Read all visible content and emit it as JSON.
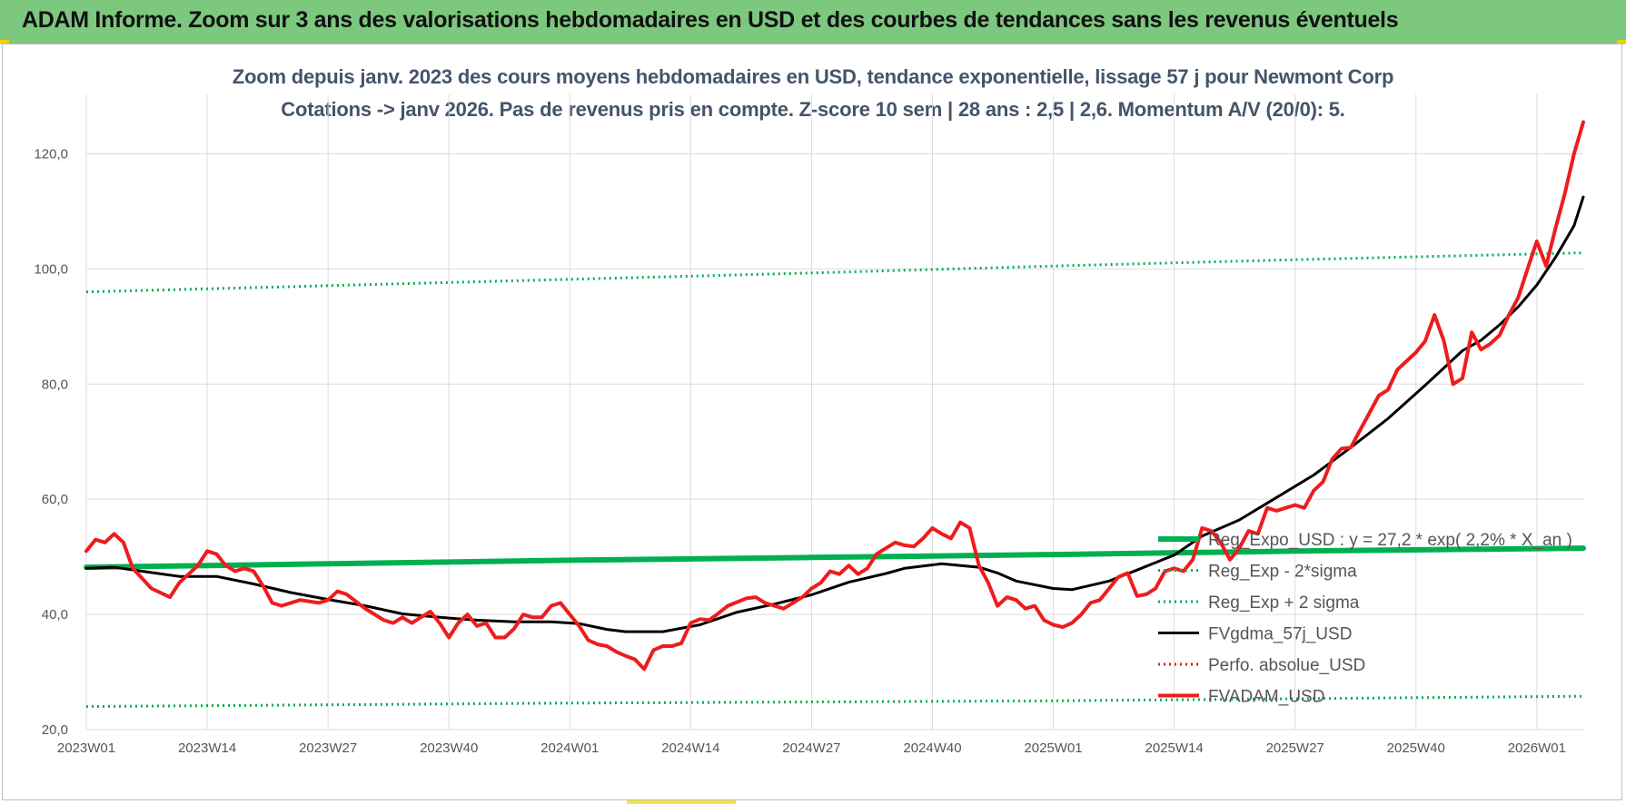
{
  "banner": {
    "text": "ADAM Informe. Zoom sur 3 ans des valorisations hebdomadaires en USD et des courbes de tendances sans les revenus éventuels"
  },
  "chart_data": {
    "type": "line",
    "title": "Zoom depuis janv. 2023 des cours moyens hebdomadaires en USD, tendance exponentielle, lissage 57 j pour Newmont Corp",
    "subtitle": "Cotations -> janv 2026. Pas de revenus pris en compte. Z-score 10 sem | 28 ans : 2,5 | 2,6. Momentum A/V (20/0): 5.",
    "xlabel": "",
    "ylabel": "",
    "ylim": [
      20,
      130
    ],
    "yticks": [
      "20,0",
      "40,0",
      "60,0",
      "80,0",
      "100,0",
      "120,0"
    ],
    "ytick_values": [
      20,
      40,
      60,
      80,
      100,
      120
    ],
    "x_tick_labels": [
      "2023W01",
      "2023W14",
      "2023W27",
      "2023W40",
      "2024W01",
      "2024W14",
      "2024W27",
      "2024W40",
      "2025W01",
      "2025W14",
      "2025W27",
      "2025W40",
      "2026W01"
    ],
    "x_tick_weeks": [
      0,
      13,
      26,
      39,
      52,
      65,
      78,
      91,
      104,
      117,
      130,
      143,
      156
    ],
    "x_range_weeks": [
      0,
      161
    ],
    "grid": true,
    "legend_position": "bottom-right",
    "colors": {
      "green": "#00b050",
      "black": "#000000",
      "red": "#ee1c1c",
      "red_dotted": "#d42020",
      "grid": "#dcdcdc"
    },
    "series": [
      {
        "name": "Reg_Expo_USD : y = 27,2 * exp( 2,2% * X_an )",
        "style": "solid-thick",
        "color": "#00b050",
        "points": [
          [
            0,
            48.2
          ],
          [
            26,
            48.8
          ],
          [
            52,
            49.4
          ],
          [
            78,
            49.9
          ],
          [
            104,
            50.4
          ],
          [
            130,
            51.0
          ],
          [
            161,
            51.5
          ]
        ]
      },
      {
        "name": "Reg_Exp - 2*sigma",
        "style": "dotted",
        "color": "#00b050",
        "points": [
          [
            0,
            24.0
          ],
          [
            52,
            24.6
          ],
          [
            104,
            25.0
          ],
          [
            161,
            25.8
          ]
        ]
      },
      {
        "name": "Reg_Exp + 2 sigma",
        "style": "dotted",
        "color": "#00b050",
        "points": [
          [
            0,
            96.0
          ],
          [
            26,
            97.1
          ],
          [
            52,
            98.2
          ],
          [
            78,
            99.3
          ],
          [
            104,
            100.5
          ],
          [
            130,
            101.6
          ],
          [
            161,
            102.8
          ]
        ]
      },
      {
        "name": "FVgdma_57j_USD",
        "style": "solid",
        "color": "#000000",
        "points": [
          [
            0,
            48.0
          ],
          [
            3,
            48.2
          ],
          [
            6,
            47.5
          ],
          [
            10,
            46.6
          ],
          [
            14,
            46.6
          ],
          [
            18,
            45.3
          ],
          [
            22,
            43.8
          ],
          [
            26,
            42.6
          ],
          [
            30,
            41.5
          ],
          [
            34,
            40.1
          ],
          [
            38,
            39.5
          ],
          [
            42,
            39.0
          ],
          [
            46,
            38.7
          ],
          [
            50,
            38.7
          ],
          [
            53,
            38.4
          ],
          [
            56,
            37.4
          ],
          [
            58,
            37.0
          ],
          [
            62,
            37.0
          ],
          [
            66,
            38.2
          ],
          [
            70,
            40.4
          ],
          [
            74,
            41.8
          ],
          [
            78,
            43.4
          ],
          [
            82,
            45.6
          ],
          [
            86,
            47.1
          ],
          [
            88,
            48.0
          ],
          [
            90,
            48.4
          ],
          [
            92,
            48.8
          ],
          [
            96,
            48.2
          ],
          [
            98,
            47.2
          ],
          [
            100,
            45.8
          ],
          [
            104,
            44.5
          ],
          [
            106,
            44.3
          ],
          [
            110,
            45.8
          ],
          [
            113,
            47.7
          ],
          [
            117,
            50.3
          ],
          [
            120,
            53.6
          ],
          [
            124,
            56.4
          ],
          [
            128,
            60.3
          ],
          [
            132,
            64.2
          ],
          [
            136,
            69.0
          ],
          [
            140,
            74.0
          ],
          [
            144,
            79.8
          ],
          [
            146,
            82.8
          ],
          [
            148,
            85.8
          ],
          [
            150,
            87.6
          ],
          [
            152,
            90.3
          ],
          [
            154,
            93.4
          ],
          [
            156,
            97.2
          ],
          [
            158,
            102.0
          ],
          [
            160,
            107.5
          ],
          [
            161,
            112.5
          ]
        ]
      },
      {
        "name": "Perfo. absolue_USD",
        "style": "dotted",
        "color": "#d42020",
        "points": []
      },
      {
        "name": "FVADAM_USD",
        "style": "solid-thick",
        "color": "#ee1c1c",
        "points": [
          [
            0,
            51.0
          ],
          [
            1,
            53.0
          ],
          [
            2,
            52.5
          ],
          [
            3,
            54.0
          ],
          [
            4,
            52.5
          ],
          [
            5,
            48.0
          ],
          [
            7,
            44.5
          ],
          [
            9,
            43.0
          ],
          [
            10,
            45.5
          ],
          [
            12,
            48.5
          ],
          [
            13,
            51.0
          ],
          [
            14,
            50.5
          ],
          [
            15,
            48.5
          ],
          [
            16,
            47.5
          ],
          [
            17,
            48.0
          ],
          [
            18,
            47.5
          ],
          [
            19,
            45.0
          ],
          [
            20,
            42.0
          ],
          [
            21,
            41.5
          ],
          [
            23,
            42.5
          ],
          [
            25,
            42.0
          ],
          [
            26,
            42.5
          ],
          [
            27,
            44.0
          ],
          [
            28,
            43.5
          ],
          [
            30,
            41.0
          ],
          [
            32,
            39.0
          ],
          [
            33,
            38.5
          ],
          [
            34,
            39.5
          ],
          [
            35,
            38.5
          ],
          [
            37,
            40.5
          ],
          [
            38,
            38.5
          ],
          [
            39,
            36.0
          ],
          [
            40,
            38.5
          ],
          [
            41,
            40.0
          ],
          [
            42,
            38.0
          ],
          [
            43,
            38.5
          ],
          [
            44,
            36.0
          ],
          [
            45,
            36.0
          ],
          [
            46,
            37.5
          ],
          [
            47,
            40.0
          ],
          [
            48,
            39.5
          ],
          [
            49,
            39.5
          ],
          [
            50,
            41.5
          ],
          [
            51,
            42.0
          ],
          [
            53,
            38.0
          ],
          [
            54,
            35.5
          ],
          [
            55,
            34.8
          ],
          [
            56,
            34.5
          ],
          [
            57,
            33.5
          ],
          [
            58,
            32.8
          ],
          [
            59,
            32.2
          ],
          [
            60,
            30.5
          ],
          [
            61,
            33.8
          ],
          [
            62,
            34.5
          ],
          [
            63,
            34.5
          ],
          [
            64,
            35.0
          ],
          [
            65,
            38.5
          ],
          [
            66,
            39.2
          ],
          [
            67,
            39.0
          ],
          [
            68,
            40.2
          ],
          [
            69,
            41.5
          ],
          [
            71,
            42.8
          ],
          [
            72,
            43.0
          ],
          [
            73,
            42.0
          ],
          [
            74,
            41.5
          ],
          [
            75,
            41.0
          ],
          [
            76,
            42.0
          ],
          [
            77,
            43.0
          ],
          [
            78,
            44.5
          ],
          [
            79,
            45.5
          ],
          [
            80,
            47.5
          ],
          [
            81,
            47.0
          ],
          [
            82,
            48.5
          ],
          [
            83,
            47.0
          ],
          [
            84,
            48.0
          ],
          [
            85,
            50.5
          ],
          [
            86,
            51.5
          ],
          [
            87,
            52.5
          ],
          [
            88,
            52.0
          ],
          [
            89,
            51.8
          ],
          [
            90,
            53.2
          ],
          [
            91,
            55.0
          ],
          [
            92,
            54.0
          ],
          [
            93,
            53.2
          ],
          [
            94,
            56.0
          ],
          [
            95,
            55.0
          ],
          [
            96,
            48.5
          ],
          [
            97,
            45.5
          ],
          [
            98,
            41.5
          ],
          [
            99,
            43.0
          ],
          [
            100,
            42.5
          ],
          [
            101,
            41.0
          ],
          [
            102,
            41.5
          ],
          [
            103,
            39.0
          ],
          [
            104,
            38.2
          ],
          [
            105,
            37.8
          ],
          [
            106,
            38.5
          ],
          [
            107,
            40.0
          ],
          [
            108,
            42.0
          ],
          [
            109,
            42.5
          ],
          [
            110,
            44.5
          ],
          [
            111,
            46.5
          ],
          [
            112,
            47.2
          ],
          [
            113,
            43.2
          ],
          [
            114,
            43.5
          ],
          [
            115,
            44.5
          ],
          [
            116,
            47.5
          ],
          [
            117,
            48.0
          ],
          [
            118,
            47.5
          ],
          [
            119,
            49.5
          ],
          [
            120,
            55.0
          ],
          [
            121,
            54.5
          ],
          [
            122,
            52.5
          ],
          [
            123,
            49.5
          ],
          [
            124,
            51.5
          ],
          [
            125,
            54.5
          ],
          [
            126,
            54.0
          ],
          [
            127,
            58.5
          ],
          [
            128,
            58.0
          ],
          [
            129,
            58.5
          ],
          [
            130,
            59.0
          ],
          [
            131,
            58.5
          ],
          [
            132,
            61.5
          ],
          [
            133,
            63.0
          ],
          [
            134,
            67.0
          ],
          [
            135,
            68.8
          ],
          [
            136,
            69.0
          ],
          [
            137,
            72.0
          ],
          [
            138,
            75.0
          ],
          [
            139,
            78.0
          ],
          [
            140,
            79.0
          ],
          [
            141,
            82.5
          ],
          [
            142,
            84.0
          ],
          [
            143,
            85.5
          ],
          [
            144,
            87.5
          ],
          [
            145,
            92.0
          ],
          [
            146,
            87.5
          ],
          [
            147,
            80.0
          ],
          [
            148,
            81.0
          ],
          [
            149,
            89.0
          ],
          [
            150,
            86.0
          ],
          [
            151,
            87.0
          ],
          [
            152,
            88.5
          ],
          [
            153,
            92.0
          ],
          [
            154,
            95.0
          ],
          [
            155,
            100.0
          ],
          [
            156,
            104.8
          ],
          [
            157,
            100.5
          ],
          [
            158,
            107.0
          ],
          [
            159,
            113.0
          ],
          [
            160,
            120.0
          ],
          [
            161,
            125.5
          ]
        ]
      }
    ]
  }
}
